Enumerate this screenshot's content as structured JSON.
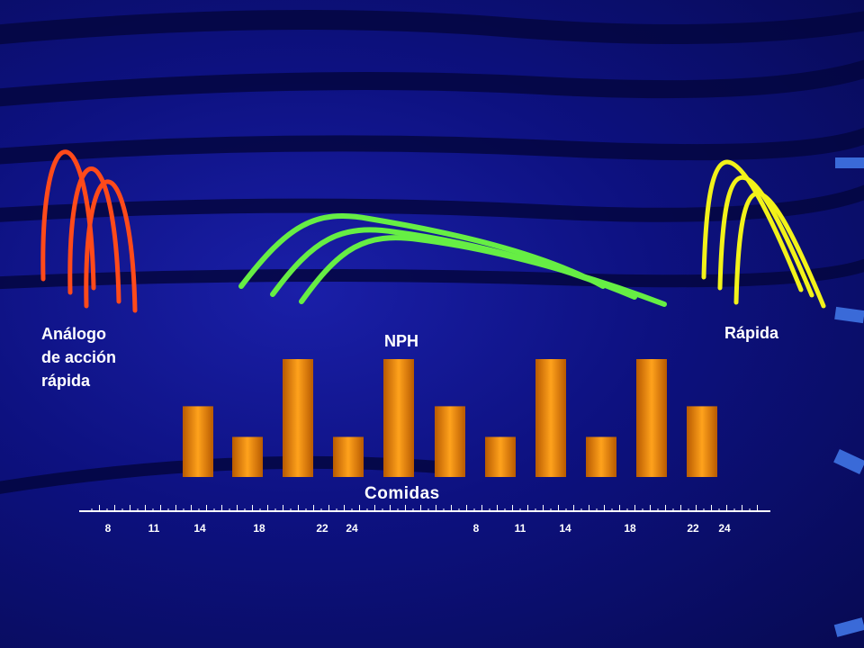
{
  "title": "Comidas",
  "labels": {
    "analog_line1": "Análogo",
    "analog_line2": "de acción",
    "analog_line3": "rápida",
    "nph": "NPH",
    "rapida": "Rápida"
  },
  "colors": {
    "background": "#0d1180",
    "bars": "#e88a10",
    "analog_curves": "#ff4a1a",
    "nph_curves": "#66ee44",
    "rapid_curves": "#f2f21a",
    "axis": "#ffffff"
  },
  "chart_data": {
    "type": "bar",
    "title": "Comidas",
    "x_tick_labels": [
      "8",
      "11",
      "14",
      "18",
      "22",
      "24",
      "8",
      "11",
      "14",
      "18",
      "22",
      "24"
    ],
    "values": [
      3,
      1.7,
      5,
      1.7,
      5,
      3,
      1.7,
      5,
      1.7,
      5,
      3
    ],
    "ylim": [
      0,
      5
    ],
    "series_labels": [
      "Análogo de acción rápida",
      "NPH",
      "Rápida"
    ],
    "curve_types": [
      "rapid-analog insulin peaks (red)",
      "NPH insulin profile (green)",
      "regular insulin peaks (yellow)"
    ],
    "grid": false,
    "legend": "none"
  }
}
